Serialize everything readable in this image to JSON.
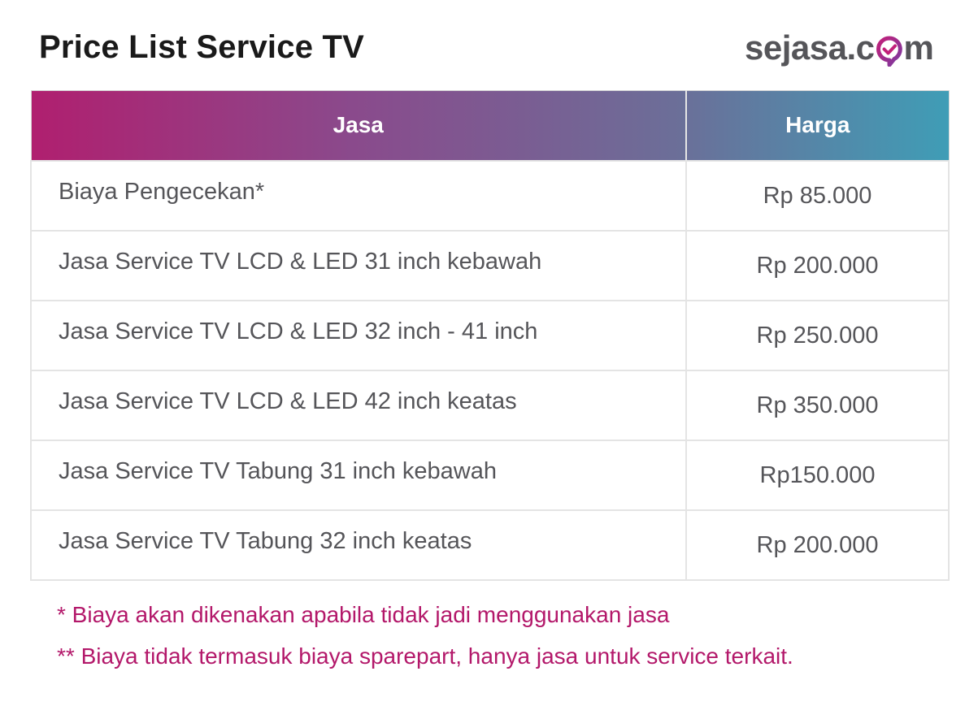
{
  "header": {
    "title": "Price List Service TV",
    "logo_prefix": "sejasa.c",
    "logo_suffix": "m",
    "logo_mark": "check-bubble-icon"
  },
  "table": {
    "columns": [
      "Jasa",
      "Harga"
    ],
    "rows": [
      {
        "service": "Biaya Pengecekan*",
        "price": "Rp 85.000"
      },
      {
        "service": "Jasa Service TV LCD & LED 31 inch kebawah",
        "price": "Rp 200.000"
      },
      {
        "service": "Jasa Service TV LCD & LED 32 inch - 41 inch",
        "price": "Rp 250.000"
      },
      {
        "service": "Jasa Service TV LCD & LED 42 inch keatas",
        "price": "Rp 350.000"
      },
      {
        "service": "Jasa Service TV Tabung 31 inch kebawah",
        "price": "Rp150.000"
      },
      {
        "service": "Jasa Service TV Tabung 32 inch keatas",
        "price": "Rp 200.000"
      }
    ]
  },
  "notes": [
    "* Biaya akan dikenakan apabila tidak jadi menggunakan jasa",
    "** Biaya tidak termasuk biaya sparepart, hanya jasa untuk service terkait."
  ],
  "colors": {
    "header_gradient_start": "#b01f6f",
    "header_gradient_end": "#3f9db6",
    "note_text": "#b3186a",
    "body_text": "#555559"
  }
}
